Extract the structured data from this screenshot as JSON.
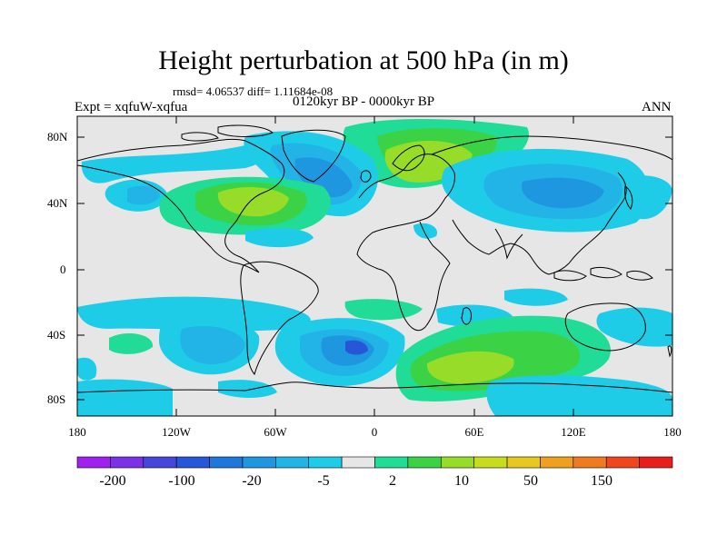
{
  "title": "Height perturbation at 500 hPa (in m)",
  "stats": "rmsd= 4.06537 diff= 1.11684e-08",
  "period": "0120kyr BP - 0000kyr BP",
  "experiment": "Expt = xqfuW-xqfua",
  "season": "ANN",
  "map": {
    "lat_labels": [
      "80N",
      "40N",
      "0",
      "40S",
      "80S"
    ],
    "lon_labels": [
      "180",
      "120W",
      "60W",
      "0",
      "60E",
      "120E",
      "180"
    ],
    "background_color": "#e6e6e6",
    "coastline_color": "#000000"
  },
  "colorbar": {
    "levels": [
      "-200",
      "-100",
      "-20",
      "-5",
      "2",
      "10",
      "50",
      "150"
    ],
    "colors": [
      "#a020f0",
      "#7b32e6",
      "#4646dc",
      "#2856d8",
      "#1e78dc",
      "#1e96e0",
      "#22b4e6",
      "#1ecce8",
      "#e6e6e6",
      "#20dc96",
      "#3cd246",
      "#96dc28",
      "#c8dc1e",
      "#e6c81e",
      "#eea01e",
      "#f07a1e",
      "#f0461e",
      "#e61e1e"
    ]
  }
}
